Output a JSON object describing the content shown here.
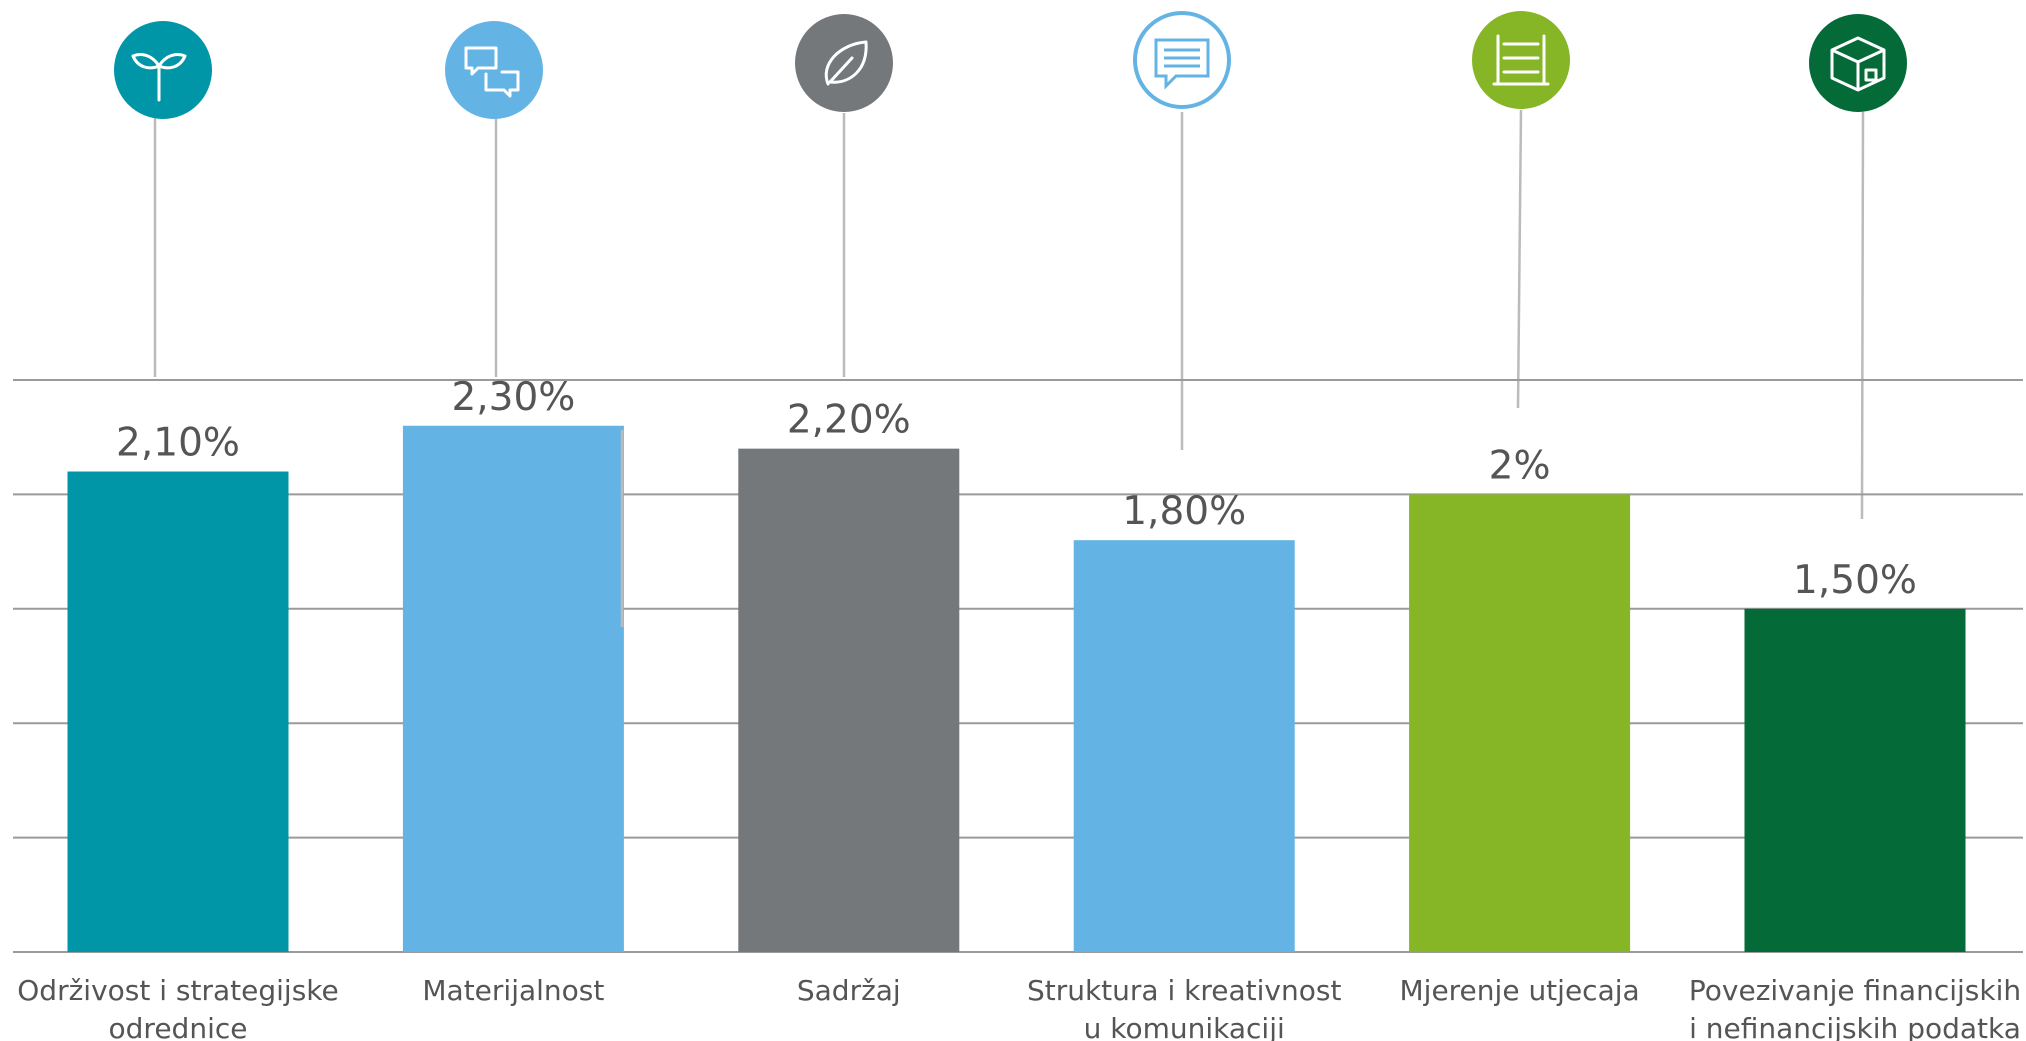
{
  "chart_data": {
    "type": "bar",
    "categories": [
      "Održivost i strategijske\nodrednice",
      "Materijalnost",
      "Sadržaj",
      "Struktura i kreativnost\nu komunikaciji",
      "Mjerenje utjecaja",
      "Povezivanje financijskih\ni nefinancijskih podatka"
    ],
    "values": [
      2.1,
      2.3,
      2.2,
      1.8,
      2,
      1.5
    ],
    "value_labels": [
      "2,10%",
      "2,30%",
      "2,20%",
      "1,80%",
      "2%",
      "1,50%"
    ],
    "colors": [
      "#0096a8",
      "#63b4e4",
      "#75787b",
      "#63b4e4",
      "#86b625",
      "#046a38"
    ],
    "ylim": [
      0,
      2.5
    ],
    "yticks": [
      0,
      0.5,
      1,
      1.5,
      2,
      2.5
    ],
    "grid": true
  }
}
